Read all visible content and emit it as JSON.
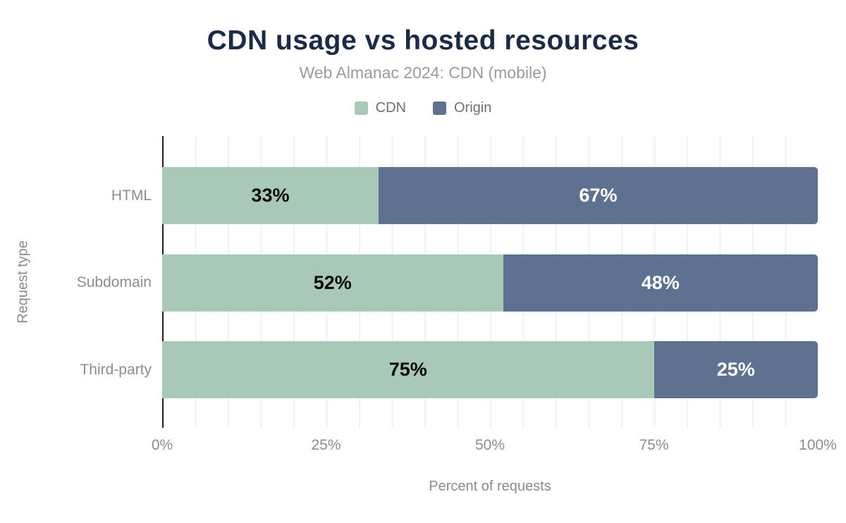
{
  "chart_data": {
    "type": "bar",
    "variant": "horizontal-stacked",
    "title": "CDN usage vs hosted resources",
    "subtitle": "Web Almanac 2024: CDN (mobile)",
    "categories": [
      "HTML",
      "Subdomain",
      "Third-party"
    ],
    "series": [
      {
        "name": "CDN",
        "color": "#a8c8b8",
        "label_color": "#0a0a0a",
        "values": [
          33,
          52,
          75
        ]
      },
      {
        "name": "Origin",
        "color": "#5f7190",
        "label_color": "#ffffff",
        "values": [
          67,
          48,
          25
        ]
      }
    ],
    "value_labels": [
      [
        "33%",
        "67%"
      ],
      [
        "52%",
        "48%"
      ],
      [
        "75%",
        "25%"
      ]
    ],
    "xlabel": "Percent of requests",
    "ylabel": "Request type",
    "xlim": [
      0,
      100
    ],
    "x_ticks": [
      {
        "label": "0%",
        "value": 0
      },
      {
        "label": "25%",
        "value": 25
      },
      {
        "label": "50%",
        "value": 50
      },
      {
        "label": "75%",
        "value": 75
      },
      {
        "label": "100%",
        "value": 100
      }
    ],
    "grid": {
      "vertical_every_percent": 5,
      "color": "#f1f1f1"
    },
    "legend_position": "top"
  },
  "colors": {
    "title": "#1b2a47",
    "subtitle": "#9b9b9b",
    "axis_line": "#202020",
    "tick_text": "#8d8d8d",
    "axis_title_text": "#858a93",
    "background": "#ffffff"
  }
}
